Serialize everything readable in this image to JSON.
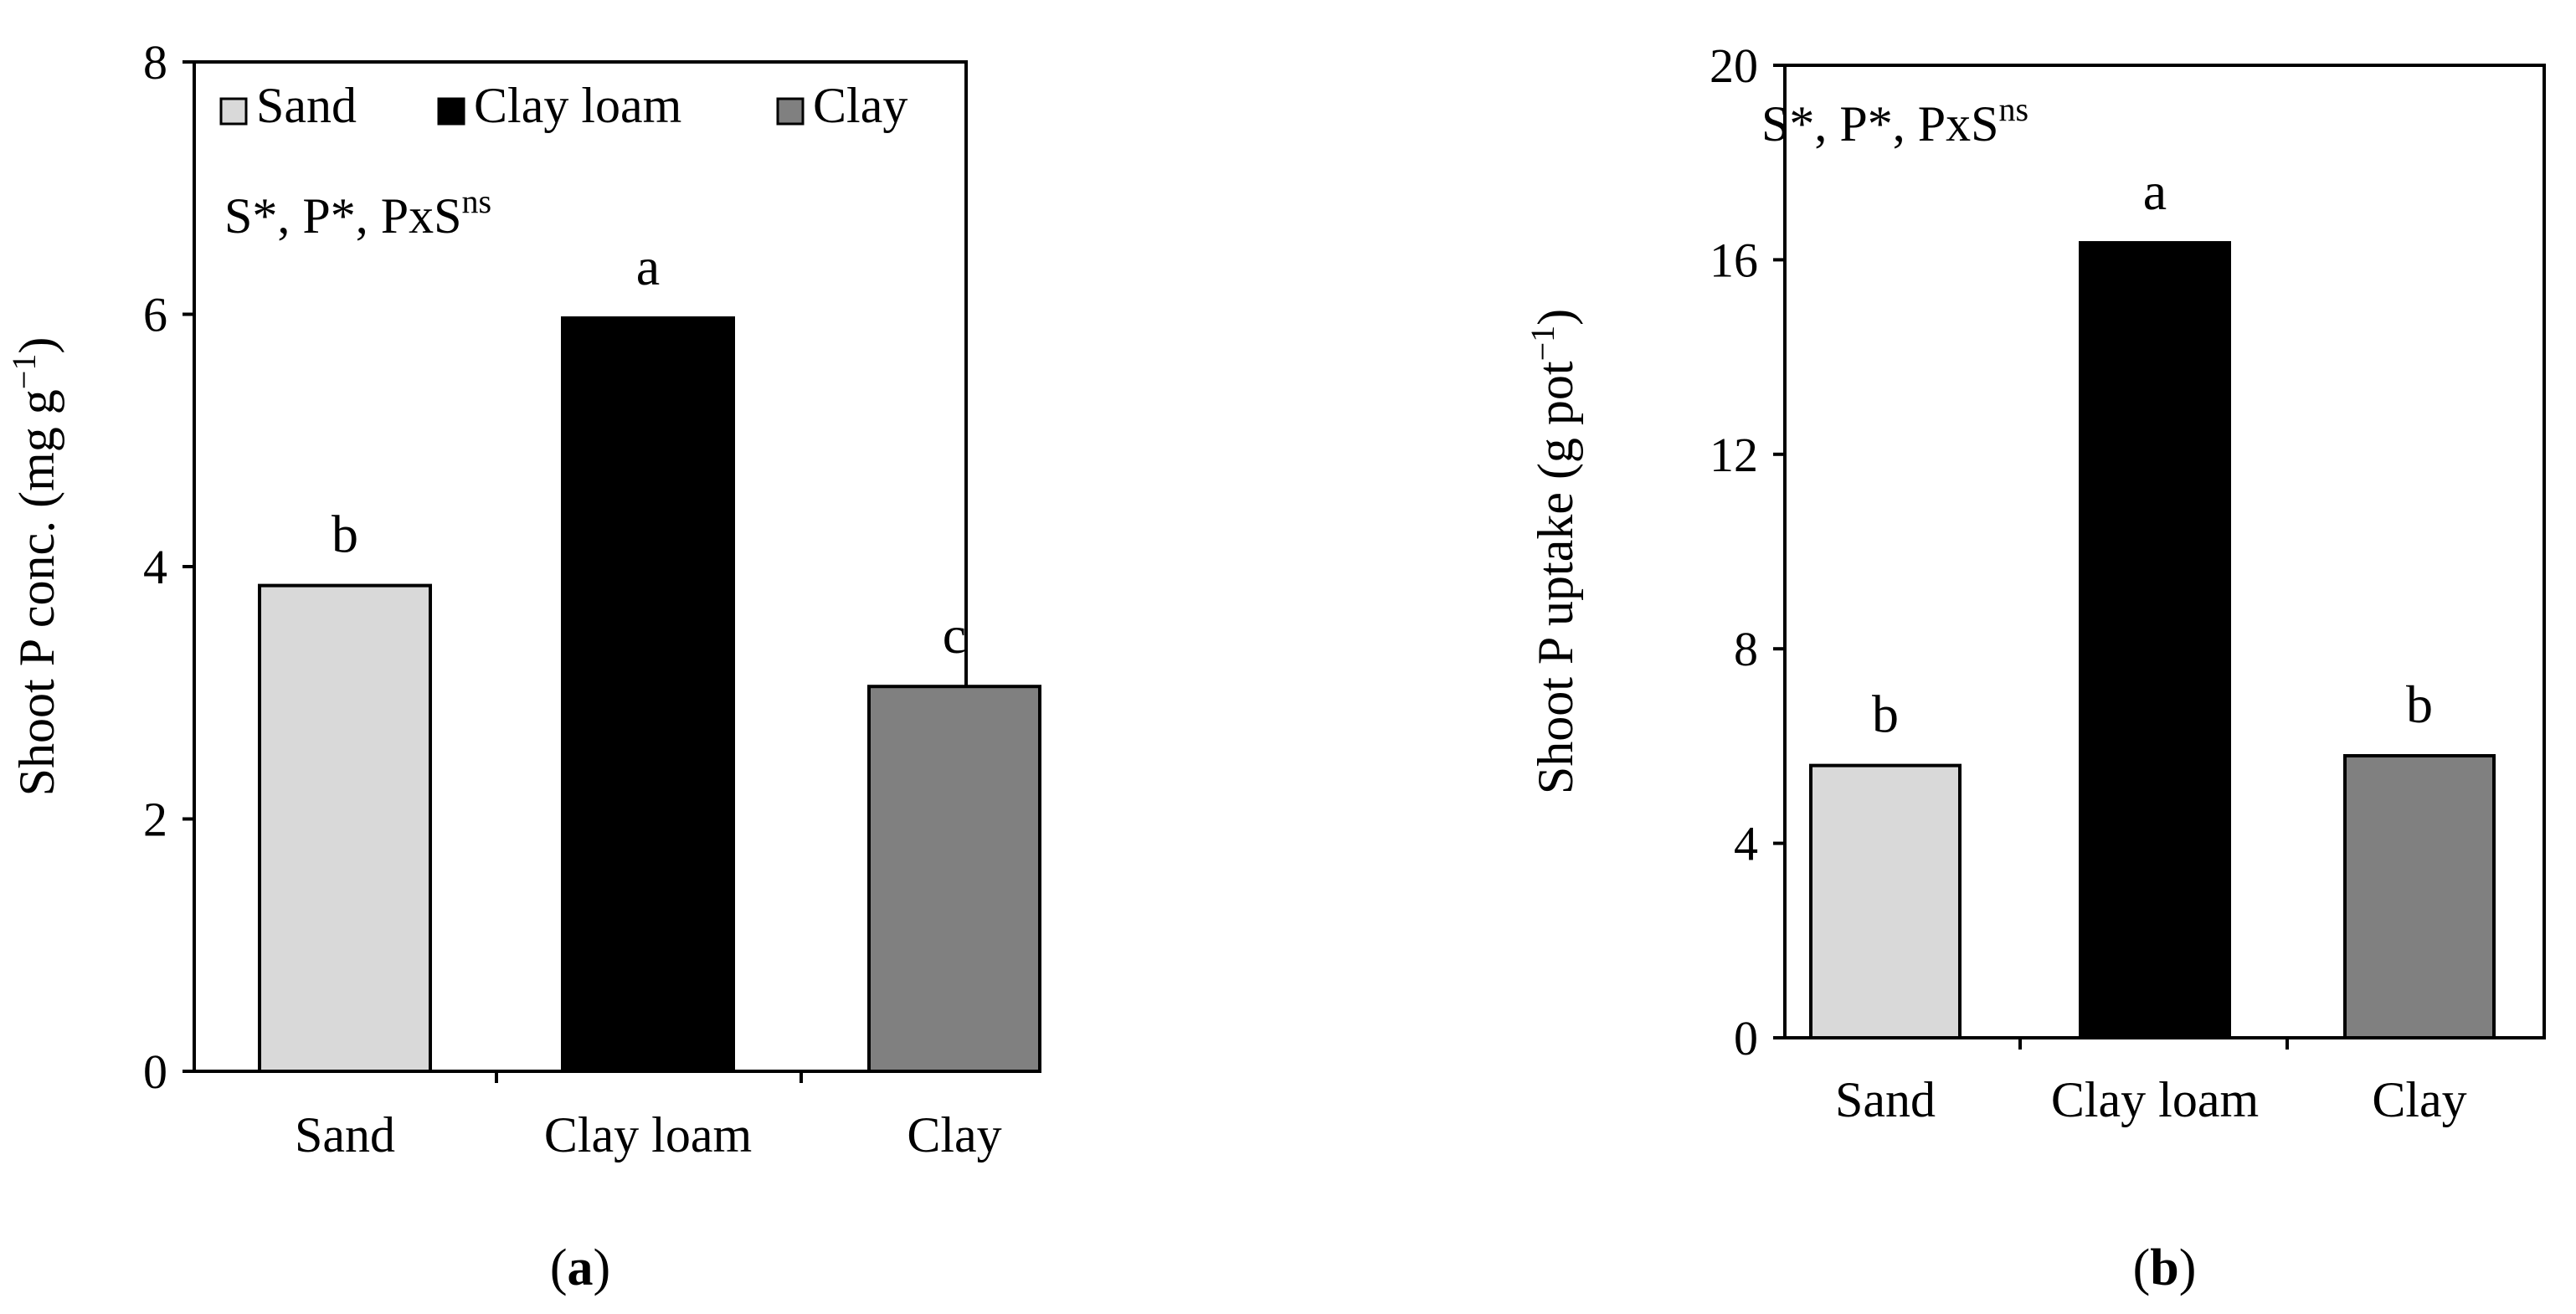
{
  "chart_data": [
    {
      "type": "bar",
      "panel_label": "a",
      "categories": [
        "Sand",
        "Clay loam",
        "Clay"
      ],
      "values": [
        3.85,
        5.97,
        3.05
      ],
      "letters": [
        "b",
        "a",
        "c"
      ],
      "colors": [
        "#d9d9d9",
        "#000000",
        "#808080"
      ],
      "ylabel": "Shoot P conc. (mg g",
      "ylabel_sup": "−1",
      "ylabel_close": ")",
      "ylim": [
        0,
        8
      ],
      "yticks": [
        0,
        2,
        4,
        6,
        8
      ],
      "grid": false,
      "significance": {
        "text": "S*, P*, PxS",
        "sup": "ns"
      },
      "legend": {
        "placement": "top-left",
        "entries": [
          {
            "label": "Sand",
            "color": "#d9d9d9"
          },
          {
            "label": "Clay loam",
            "color": "#000000"
          },
          {
            "label": "Clay",
            "color": "#808080"
          }
        ]
      }
    },
    {
      "type": "bar",
      "panel_label": "b",
      "categories": [
        "Sand",
        "Clay loam",
        "Clay"
      ],
      "values": [
        5.6,
        16.35,
        5.8
      ],
      "letters": [
        "b",
        "a",
        "b"
      ],
      "colors": [
        "#d9d9d9",
        "#000000",
        "#808080"
      ],
      "ylabel": "Shoot P uptake (g pot",
      "ylabel_sup": "−1",
      "ylabel_close": ")",
      "ylim": [
        0,
        20
      ],
      "yticks": [
        0,
        4,
        8,
        12,
        16,
        20
      ],
      "grid": false,
      "significance": {
        "text": "S*, P*, PxS",
        "sup": "ns"
      }
    }
  ]
}
